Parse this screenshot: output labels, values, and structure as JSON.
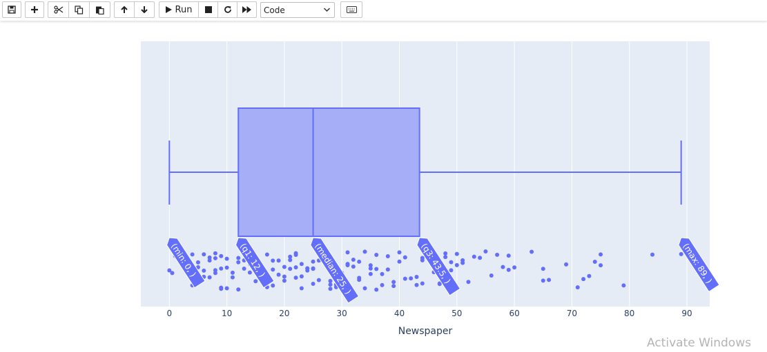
{
  "toolbar": {
    "buttons": [
      {
        "name": "save-button",
        "icon": "save-icon"
      },
      {
        "name": "insert-cell-button",
        "icon": "plus-icon"
      },
      {
        "name": "cut-button",
        "icon": "scissors-icon"
      },
      {
        "name": "copy-button",
        "icon": "copy-icon"
      },
      {
        "name": "paste-button",
        "icon": "paste-icon"
      },
      {
        "name": "move-up-button",
        "icon": "arrow-up-icon"
      },
      {
        "name": "move-down-button",
        "icon": "arrow-down-icon"
      },
      {
        "name": "run-button",
        "icon": "play-icon"
      },
      {
        "name": "interrupt-button",
        "icon": "stop-icon"
      },
      {
        "name": "restart-button",
        "icon": "restart-icon"
      },
      {
        "name": "restart-run-all-button",
        "icon": "fast-forward-icon"
      },
      {
        "name": "command-palette-button",
        "icon": "keyboard-icon"
      }
    ],
    "run_label": "Run",
    "cell_type": "Code"
  },
  "chart_data": {
    "type": "box",
    "orientation": "horizontal",
    "xlabel": "Newspaper",
    "xlim": [
      -5,
      94
    ],
    "xticks": [
      0,
      10,
      20,
      30,
      40,
      50,
      60,
      70,
      80,
      90
    ],
    "grid": true,
    "box": {
      "min": 0,
      "q1": 12,
      "median": 25,
      "q3": 43.5,
      "max": 89
    },
    "hover_labels": [
      {
        "text": "(min: 0, )",
        "x": 0
      },
      {
        "text": "(q1: 12, )",
        "x": 12
      },
      {
        "text": "(median: 25, )",
        "x": 25
      },
      {
        "text": "(q3: 43.5, )",
        "x": 43.5
      },
      {
        "text": "(max: 89, )",
        "x": 89
      }
    ],
    "points": [
      0,
      0.5,
      1,
      2,
      3,
      3,
      4,
      4,
      5,
      5,
      5,
      5,
      6,
      6,
      6,
      7,
      7,
      7,
      8,
      8,
      8,
      8,
      9,
      9,
      9,
      9,
      10,
      10,
      10,
      11,
      11,
      12,
      12,
      12,
      13,
      13,
      14,
      14,
      15,
      15,
      16,
      16,
      17,
      17,
      18,
      18,
      18,
      19,
      19,
      20,
      20,
      20,
      21,
      21,
      21,
      22,
      22,
      22,
      22,
      23,
      23,
      23,
      24,
      24,
      24,
      25,
      25,
      25,
      25,
      26,
      26,
      27,
      27,
      28,
      28,
      28,
      29,
      29,
      30,
      30,
      30,
      31,
      31,
      31,
      32,
      32,
      33,
      33,
      33,
      34,
      34,
      35,
      35,
      35,
      36,
      36,
      36,
      37,
      37,
      38,
      38,
      39,
      39,
      40,
      40,
      41,
      41,
      42,
      43,
      43,
      44,
      44,
      44,
      45,
      45,
      46,
      46,
      47,
      47,
      48,
      48,
      48,
      49,
      49,
      50,
      50,
      51,
      51,
      52,
      53,
      54,
      55,
      56,
      57,
      58,
      59,
      59,
      60,
      63,
      65,
      65,
      66,
      69,
      71,
      72,
      73,
      74,
      75,
      75,
      79,
      84,
      89
    ],
    "colors": {
      "box_fill": "#a1abf6",
      "box_line": "#636efa",
      "plot_bg": "#e5ecf6",
      "grid": "#ffffff",
      "marker": "#636efa"
    }
  },
  "watermark": "Activate Windows"
}
